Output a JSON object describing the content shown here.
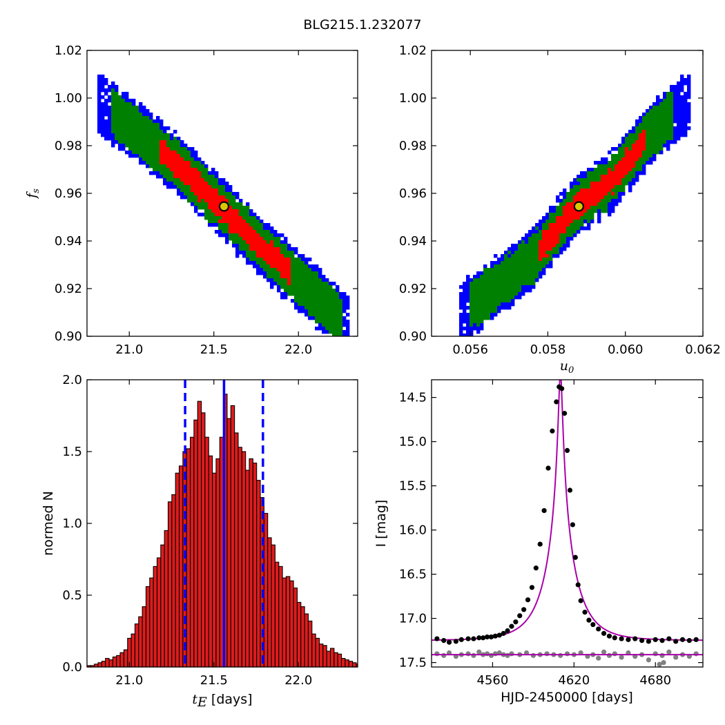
{
  "title": "BLG215.1.232077",
  "chart_data": [
    {
      "type": "heatmap",
      "panel": "top-left",
      "x": "t_E",
      "y": "f_s",
      "xlabel": "",
      "ylabel": "f_s",
      "xlim": [
        20.75,
        22.35
      ],
      "ylim": [
        0.9,
        1.02
      ],
      "xticks": [
        "21.0",
        "21.5",
        "22.0"
      ],
      "yticks": [
        "0.90",
        "0.92",
        "0.94",
        "0.96",
        "0.98",
        "1.00",
        "1.02"
      ],
      "correlation": "negative",
      "ridge": [
        [
          20.82,
          0.998
        ],
        [
          21.1,
          0.983
        ],
        [
          21.3,
          0.971
        ],
        [
          21.5,
          0.957
        ],
        [
          21.7,
          0.943
        ],
        [
          21.9,
          0.93
        ],
        [
          22.1,
          0.917
        ],
        [
          22.3,
          0.904
        ]
      ],
      "confidence_levels": [
        {
          "color": "#ff0000",
          "extent": [
            21.18,
            21.95
          ]
        },
        {
          "color": "#008000",
          "extent": [
            20.9,
            22.25
          ]
        },
        {
          "color": "#0000ff",
          "extent": [
            20.77,
            22.32
          ]
        }
      ],
      "best_fit": {
        "x": 21.56,
        "y": 0.9545,
        "color": "#d8c800"
      }
    },
    {
      "type": "heatmap",
      "panel": "top-right",
      "x": "u_0",
      "y": "f_s",
      "xlabel": "u_0",
      "ylabel": "",
      "xlim": [
        0.055,
        0.062
      ],
      "ylim": [
        0.9,
        1.02
      ],
      "xticks": [
        "0.056",
        "0.058",
        "0.060",
        "0.062"
      ],
      "yticks": [
        "0.90",
        "0.92",
        "0.94",
        "0.96",
        "0.98",
        "1.00",
        "1.02"
      ],
      "correlation": "positive",
      "ridge": [
        [
          0.0557,
          0.909
        ],
        [
          0.0567,
          0.921
        ],
        [
          0.0577,
          0.934
        ],
        [
          0.0587,
          0.954
        ],
        [
          0.0597,
          0.966
        ],
        [
          0.0607,
          0.986
        ],
        [
          0.0617,
          0.999
        ]
      ],
      "confidence_levels": [
        {
          "color": "#ff0000",
          "extent": [
            0.0578,
            0.0605
          ]
        },
        {
          "color": "#008000",
          "extent": [
            0.056,
            0.0612
          ]
        },
        {
          "color": "#0000ff",
          "extent": [
            0.0555,
            0.0617
          ]
        }
      ],
      "best_fit": {
        "x": 0.0588,
        "y": 0.9545,
        "color": "#d8c800"
      }
    },
    {
      "type": "bar",
      "panel": "bottom-left",
      "xlabel": "t_E [days]",
      "ylabel": "normed N",
      "xlim": [
        20.75,
        22.35
      ],
      "ylim": [
        0.0,
        2.0
      ],
      "xticks": [
        "21.0",
        "21.5",
        "22.0"
      ],
      "yticks": [
        "0.0",
        "0.5",
        "1.0",
        "1.5",
        "2.0"
      ],
      "bin_start": 20.75,
      "bin_width": 0.0218,
      "bar_color": "#dd1c1c",
      "values": [
        0.01,
        0.01,
        0.02,
        0.03,
        0.04,
        0.06,
        0.05,
        0.07,
        0.08,
        0.1,
        0.12,
        0.2,
        0.23,
        0.3,
        0.35,
        0.42,
        0.56,
        0.62,
        0.7,
        0.76,
        0.85,
        0.95,
        1.15,
        1.2,
        1.35,
        1.4,
        1.5,
        1.52,
        1.6,
        1.72,
        1.85,
        1.77,
        1.6,
        1.47,
        1.35,
        1.45,
        1.6,
        1.9,
        1.73,
        1.82,
        1.63,
        1.53,
        1.5,
        1.37,
        1.45,
        1.42,
        1.3,
        1.18,
        1.07,
        0.9,
        0.85,
        0.73,
        0.7,
        0.62,
        0.63,
        0.6,
        0.55,
        0.45,
        0.42,
        0.37,
        0.32,
        0.23,
        0.2,
        0.16,
        0.15,
        0.11,
        0.13,
        0.1,
        0.09,
        0.06,
        0.05,
        0.04,
        0.03,
        0.02
      ],
      "median": 21.56,
      "lower": 21.33,
      "upper": 21.79,
      "median_color": "#0000ff"
    },
    {
      "type": "scatter",
      "panel": "bottom-right",
      "xlabel": "HJD-2450000 [days]",
      "ylabel": "I [mag]",
      "xlim": [
        4515,
        4715
      ],
      "ylim": [
        17.55,
        14.3
      ],
      "xticks": [
        "4560",
        "4620",
        "4680"
      ],
      "yticks": [
        "14.5",
        "15.0",
        "15.5",
        "16.0",
        "16.5",
        "17.0",
        "17.5"
      ],
      "model": {
        "t0": 4610.0,
        "u0": 0.0588,
        "tE": 21.56,
        "base": 17.25,
        "fs": 0.9545,
        "color": "#aa00aa"
      },
      "residual_baseline": 17.41,
      "series": [
        {
          "color": "#000000",
          "points": [
            [
              4519,
              17.23
            ],
            [
              4524,
              17.25
            ],
            [
              4528,
              17.27
            ],
            [
              4533,
              17.26
            ],
            [
              4537,
              17.24
            ],
            [
              4542,
              17.23
            ],
            [
              4546,
              17.23
            ],
            [
              4550,
              17.22
            ],
            [
              4553,
              17.22
            ],
            [
              4556,
              17.21
            ],
            [
              4559,
              17.21
            ],
            [
              4562,
              17.2
            ],
            [
              4565,
              17.19
            ],
            [
              4568,
              17.17
            ],
            [
              4571,
              17.14
            ],
            [
              4574,
              17.09
            ],
            [
              4577,
              17.04
            ],
            [
              4580,
              16.97
            ],
            [
              4583,
              16.9
            ],
            [
              4586,
              16.79
            ],
            [
              4589,
              16.65
            ],
            [
              4592,
              16.43
            ],
            [
              4595,
              16.16
            ],
            [
              4598,
              15.78
            ],
            [
              4601,
              15.3
            ],
            [
              4604,
              14.88
            ],
            [
              4607,
              14.55
            ],
            [
              4609,
              14.38
            ],
            [
              4611,
              14.4
            ],
            [
              4613,
              14.68
            ],
            [
              4615,
              15.1
            ],
            [
              4617,
              15.55
            ],
            [
              4619,
              15.94
            ],
            [
              4621,
              16.31
            ],
            [
              4623,
              16.62
            ],
            [
              4625,
              16.8
            ],
            [
              4628,
              16.93
            ],
            [
              4631,
              17.02
            ],
            [
              4634,
              17.07
            ],
            [
              4638,
              17.12
            ],
            [
              4642,
              17.17
            ],
            [
              4646,
              17.2
            ],
            [
              4650,
              17.22
            ],
            [
              4655,
              17.23
            ],
            [
              4660,
              17.24
            ],
            [
              4665,
              17.23
            ],
            [
              4670,
              17.25
            ],
            [
              4675,
              17.26
            ],
            [
              4680,
              17.24
            ],
            [
              4685,
              17.25
            ],
            [
              4690,
              17.23
            ],
            [
              4695,
              17.26
            ],
            [
              4700,
              17.24
            ],
            [
              4705,
              17.25
            ],
            [
              4710,
              17.24
            ]
          ]
        },
        {
          "color": "#808080",
          "points": [
            [
              4519,
              17.4
            ],
            [
              4524,
              17.42
            ],
            [
              4528,
              17.39
            ],
            [
              4533,
              17.43
            ],
            [
              4537,
              17.41
            ],
            [
              4542,
              17.4
            ],
            [
              4546,
              17.42
            ],
            [
              4550,
              17.38
            ],
            [
              4553,
              17.41
            ],
            [
              4556,
              17.4
            ],
            [
              4559,
              17.42
            ],
            [
              4562,
              17.4
            ],
            [
              4565,
              17.39
            ],
            [
              4568,
              17.41
            ],
            [
              4571,
              17.42
            ],
            [
              4574,
              17.4
            ],
            [
              4580,
              17.41
            ],
            [
              4585,
              17.39
            ],
            [
              4590,
              17.42
            ],
            [
              4595,
              17.41
            ],
            [
              4600,
              17.4
            ],
            [
              4605,
              17.41
            ],
            [
              4610,
              17.42
            ],
            [
              4615,
              17.4
            ],
            [
              4620,
              17.41
            ],
            [
              4625,
              17.39
            ],
            [
              4630,
              17.43
            ],
            [
              4634,
              17.41
            ],
            [
              4638,
              17.45
            ],
            [
              4642,
              17.38
            ],
            [
              4646,
              17.42
            ],
            [
              4650,
              17.4
            ],
            [
              4655,
              17.44
            ],
            [
              4660,
              17.39
            ],
            [
              4665,
              17.43
            ],
            [
              4670,
              17.41
            ],
            [
              4675,
              17.47
            ],
            [
              4680,
              17.4
            ],
            [
              4685,
              17.42
            ],
            [
              4690,
              17.38
            ],
            [
              4695,
              17.44
            ],
            [
              4700,
              17.41
            ],
            [
              4705,
              17.43
            ],
            [
              4710,
              17.4
            ],
            [
              4683,
              17.52
            ],
            [
              4686,
              17.5
            ]
          ]
        }
      ]
    }
  ]
}
